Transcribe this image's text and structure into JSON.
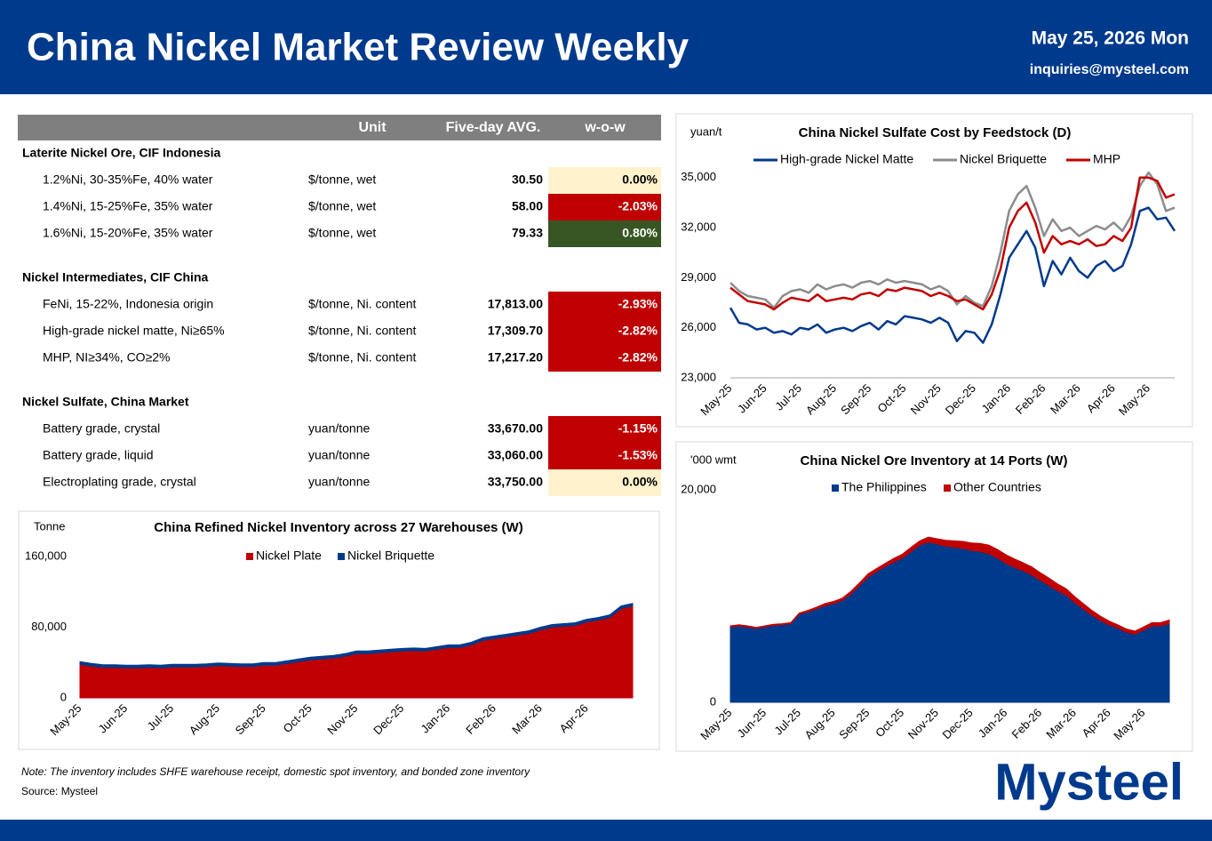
{
  "header": {
    "title": "China Nickel Market Review Weekly",
    "date": "May 25, 2026 Mon",
    "email": "inquiries@mysteel.com"
  },
  "table": {
    "columns": [
      "Unit",
      "Five-day AVG.",
      "w-o-w"
    ],
    "sections": [
      {
        "title": "Laterite Nickel Ore, CIF Indonesia",
        "rows": [
          [
            "1.2%Ni, 30-35%Fe, 40% water",
            "$/tonne, wet",
            "30.50",
            "0.00%"
          ],
          [
            "1.4%Ni, 15-25%Fe, 35% water",
            "$/tonne, wet",
            "58.00",
            "-2.03%"
          ],
          [
            "1.6%Ni, 15-20%Fe, 35% water",
            "$/tonne, wet",
            "79.33",
            "0.80%"
          ]
        ]
      },
      {
        "title": "Nickel Intermediates, CIF China",
        "rows": [
          [
            "FeNi, 15-22%, Indonesia origin",
            "$/tonne, Ni. content",
            "17,813.00",
            "-2.93%"
          ],
          [
            "High-grade nickel matte, Ni≥65%",
            "$/tonne, Ni. content",
            "17,309.70",
            "-2.82%"
          ],
          [
            "MHP, NI≥34%, CO≥2%",
            "$/tonne, Ni. content",
            "17,217.20",
            "-2.82%"
          ]
        ]
      },
      {
        "title": "Nickel Sulfate, China Market",
        "rows": [
          [
            "Battery grade, crystal",
            "yuan/tonne",
            "33,670.00",
            "-1.15%"
          ],
          [
            "Battery grade, liquid",
            "yuan/tonne",
            "33,060.00",
            "-1.53%"
          ],
          [
            "Electroplating grade, crystal",
            "yuan/tonne",
            "33,750.00",
            "0.00%"
          ]
        ]
      }
    ]
  },
  "chart_data": [
    {
      "type": "line",
      "title": "China Nickel Sulfate Cost by Feedstock (D)",
      "y_label": "yuan/t",
      "categories": [
        "May-25",
        null,
        null,
        null,
        "Jun-25",
        null,
        null,
        null,
        "Jul-25",
        null,
        null,
        null,
        "Aug-25",
        null,
        null,
        null,
        "Sep-25",
        null,
        null,
        null,
        "Oct-25",
        null,
        null,
        null,
        "Nov-25",
        null,
        null,
        null,
        "Dec-25",
        null,
        null,
        null,
        "Jan-26",
        null,
        null,
        null,
        "Feb-26",
        null,
        null,
        null,
        "Mar-26",
        null,
        null,
        null,
        "Apr-26",
        null,
        null,
        null,
        "May-26",
        null,
        null,
        null
      ],
      "ylim": [
        23000,
        36000
      ],
      "yticks": [
        {
          "value": 23000,
          "label": "23,000"
        },
        {
          "value": 26000,
          "label": "26,000"
        },
        {
          "value": 29000,
          "label": "29,000"
        },
        {
          "value": 32000,
          "label": "32,000"
        },
        {
          "value": 35000,
          "label": "35,000"
        }
      ],
      "series": [
        {
          "name": "High-grade Nickel Matte",
          "color": "#003a8c",
          "values": [
            27200,
            26300,
            26200,
            25900,
            26000,
            25700,
            25800,
            25600,
            26000,
            25900,
            26200,
            25700,
            25900,
            26000,
            25800,
            26100,
            26300,
            25900,
            26400,
            26200,
            26700,
            26600,
            26500,
            26300,
            26600,
            26300,
            25200,
            25800,
            25700,
            25100,
            26200,
            28000,
            30200,
            31000,
            31800,
            30800,
            28500,
            30000,
            29200,
            30200,
            29400,
            29000,
            29700,
            30000,
            29400,
            29700,
            31000,
            33000,
            33200,
            32500,
            32600,
            31800
          ]
        },
        {
          "name": "Nickel Briquette",
          "color": "#8c8c8c",
          "values": [
            28700,
            28200,
            27900,
            27800,
            27700,
            27200,
            27900,
            28200,
            28300,
            28100,
            28600,
            28300,
            28500,
            28600,
            28400,
            28700,
            28800,
            28600,
            28900,
            28700,
            28800,
            28700,
            28600,
            28300,
            28500,
            28200,
            27400,
            27900,
            27500,
            27300,
            28500,
            30500,
            33000,
            34000,
            34500,
            33200,
            31500,
            32500,
            31800,
            32000,
            31500,
            31800,
            32100,
            31900,
            32300,
            31800,
            32700,
            34500,
            35300,
            34600,
            33000,
            33200
          ]
        },
        {
          "name": "MHP",
          "color": "#c00000",
          "values": [
            28400,
            28000,
            27600,
            27500,
            27400,
            27100,
            27500,
            27800,
            27700,
            27600,
            28000,
            27600,
            27700,
            27800,
            27700,
            28000,
            28100,
            27900,
            28300,
            28200,
            28400,
            28300,
            28200,
            27900,
            28100,
            27900,
            27600,
            27700,
            27400,
            27100,
            28000,
            29500,
            32000,
            33000,
            33500,
            32300,
            30500,
            31500,
            31000,
            31200,
            31000,
            31300,
            30900,
            31000,
            31500,
            31200,
            32000,
            35000,
            35000,
            34800,
            33800,
            34000
          ]
        }
      ]
    },
    {
      "type": "area",
      "title": "China Nickel Ore Inventory at 14 Ports (W)",
      "y_label": "'000 wmt",
      "categories": [
        "May-25",
        null,
        null,
        null,
        "Jun-25",
        null,
        null,
        null,
        "Jul-25",
        null,
        null,
        null,
        "Aug-25",
        null,
        null,
        null,
        "Sep-25",
        null,
        null,
        null,
        "Oct-25",
        null,
        null,
        null,
        "Nov-25",
        null,
        null,
        null,
        "Dec-25",
        null,
        null,
        null,
        "Jan-26",
        null,
        null,
        null,
        "Feb-26",
        null,
        null,
        null,
        "Mar-26",
        null,
        null,
        null,
        "Apr-26",
        null,
        null,
        null,
        "May-26",
        null,
        null,
        null
      ],
      "ylim": [
        0,
        20000
      ],
      "yticks": [
        0,
        {
          "value": 20000,
          "label": "20,000"
        }
      ],
      "series": [
        {
          "name": "The Philippines",
          "color": "#003a8c",
          "values": [
            7100,
            7200,
            7100,
            6950,
            7100,
            7250,
            7300,
            7400,
            8300,
            8500,
            8800,
            9100,
            9300,
            9600,
            10200,
            11000,
            11800,
            12300,
            12800,
            13200,
            13600,
            14200,
            14800,
            15100,
            14900,
            14700,
            14600,
            14500,
            14300,
            14200,
            14000,
            13600,
            13100,
            12700,
            12400,
            12000,
            11500,
            11000,
            10500,
            10100,
            9400,
            8800,
            8200,
            7700,
            7300,
            7000,
            6600,
            6400,
            6800,
            7200,
            7200,
            7400
          ]
        },
        {
          "name": "Other Countries",
          "color": "#c00000",
          "values": [
            100,
            100,
            100,
            100,
            100,
            100,
            100,
            100,
            100,
            150,
            150,
            200,
            200,
            200,
            250,
            250,
            300,
            300,
            300,
            350,
            350,
            400,
            400,
            450,
            500,
            550,
            600,
            650,
            700,
            750,
            800,
            800,
            800,
            800,
            750,
            750,
            700,
            700,
            650,
            600,
            550,
            500,
            450,
            400,
            350,
            300,
            300,
            300,
            300,
            300,
            300,
            350
          ]
        }
      ]
    },
    {
      "type": "area",
      "title": "China Refined Nickel Inventory across 27 Warehouses (W)",
      "y_label": "Tonne",
      "categories": [
        "May-25",
        null,
        null,
        null,
        "Jun-25",
        null,
        null,
        null,
        "Jul-25",
        null,
        null,
        null,
        "Aug-25",
        null,
        null,
        null,
        "Sep-25",
        null,
        null,
        null,
        "Oct-25",
        null,
        null,
        null,
        "Nov-25",
        null,
        null,
        null,
        "Dec-25",
        null,
        null,
        null,
        "Jan-26",
        null,
        null,
        null,
        "Feb-26",
        null,
        null,
        null,
        "Mar-26",
        null,
        null,
        null,
        "Apr-26",
        null,
        null,
        null,
        null
      ],
      "ylim": [
        0,
        160000
      ],
      "yticks": [
        0,
        {
          "value": 80000,
          "label": "80,000"
        },
        {
          "value": 160000,
          "label": "160,000"
        }
      ],
      "series": [
        {
          "name": "Nickel Plate",
          "color": "#c00000",
          "values": [
            38000,
            36000,
            34500,
            34500,
            34000,
            34000,
            34500,
            34000,
            35000,
            35000,
            35000,
            35500,
            36500,
            36000,
            35500,
            35500,
            37000,
            37000,
            39000,
            41000,
            43000,
            44000,
            45000,
            47000,
            50000,
            50000,
            51000,
            52000,
            53000,
            53500,
            53000,
            55000,
            57000,
            57000,
            60000,
            65000,
            67000,
            69000,
            71000,
            73000,
            77000,
            80000,
            81000,
            82000,
            86000,
            88000,
            91000,
            101000,
            104000
          ]
        },
        {
          "name": "Nickel Briquette",
          "color": "#003a8c",
          "values": [
            3000,
            3000,
            3000,
            3000,
            3000,
            3000,
            3000,
            3000,
            3000,
            3000,
            3000,
            3000,
            3000,
            3000,
            3000,
            3000,
            3000,
            3000,
            3000,
            3000,
            3000,
            3000,
            3000,
            3000,
            3000,
            3000,
            3000,
            3000,
            3000,
            3000,
            3000,
            3000,
            3000,
            3000,
            3000,
            3000,
            3000,
            3000,
            3000,
            3000,
            3000,
            3000,
            3000,
            3000,
            3000,
            3000,
            3000,
            3000,
            3000
          ]
        }
      ]
    }
  ],
  "footer": {
    "note": "Note: The inventory includes SHFE warehouse receipt, domestic spot inventory, and bonded zone inventory",
    "source": "Source: Mysteel",
    "logo": "Mysteel"
  }
}
